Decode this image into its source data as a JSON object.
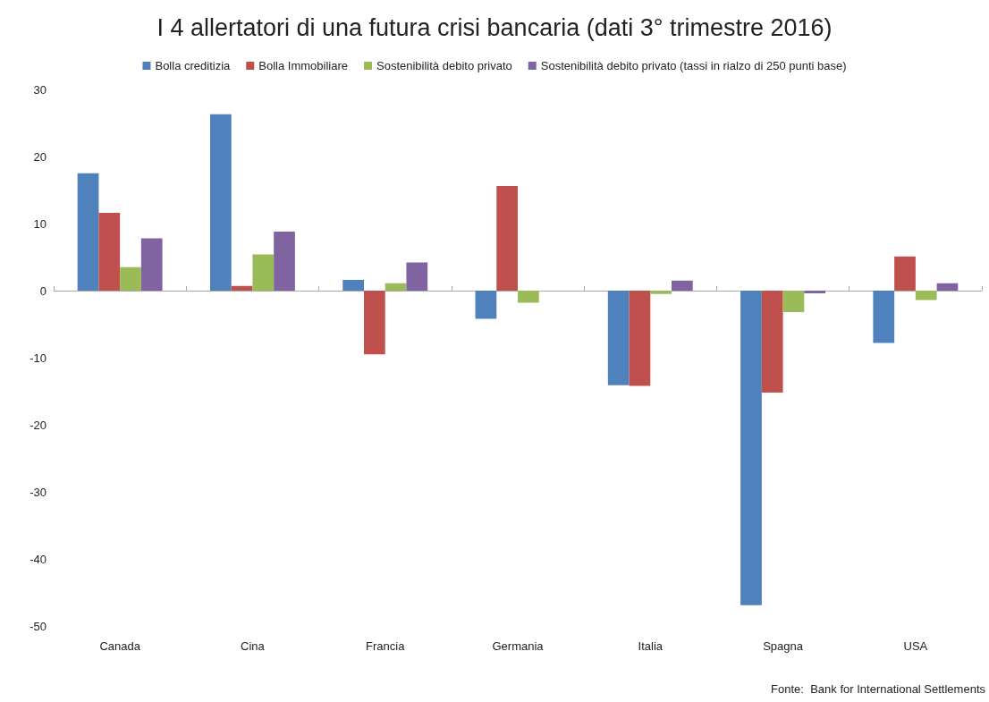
{
  "chart_data": {
    "type": "bar",
    "title": "I 4 allertatori di una futura crisi bancaria (dati 3° trimestre 2016)",
    "categories": [
      "Canada",
      "Cina",
      "Francia",
      "Germania",
      "Italia",
      "Spagna",
      "USA"
    ],
    "series": [
      {
        "name": "Bolla creditizia",
        "color": "#4f81bd",
        "values": [
          17.5,
          26.3,
          1.6,
          -4.2,
          -14.1,
          -46.9,
          -7.8
        ]
      },
      {
        "name": "Bolla Immobiliare",
        "color": "#c0504d",
        "values": [
          11.6,
          0.7,
          -9.5,
          15.6,
          -14.2,
          -15.2,
          5.1
        ]
      },
      {
        "name": "Sostenibilità debito privato",
        "color": "#9bbb59",
        "values": [
          3.5,
          5.4,
          1.1,
          -1.8,
          -0.5,
          -3.2,
          -1.4
        ]
      },
      {
        "name": "Sostenibilità debito privato (tassi in rialzo di 250 punti base)",
        "color": "#8064a2",
        "values": [
          7.8,
          8.8,
          4.2,
          null,
          1.5,
          -0.4,
          1.1
        ]
      }
    ],
    "ylim": [
      -50,
      30
    ],
    "yticks": [
      -50,
      -40,
      -30,
      -20,
      -10,
      0,
      10,
      20,
      30
    ],
    "legend": "top",
    "annotations": [
      "Fonte:  Bank for International Settlements"
    ]
  }
}
